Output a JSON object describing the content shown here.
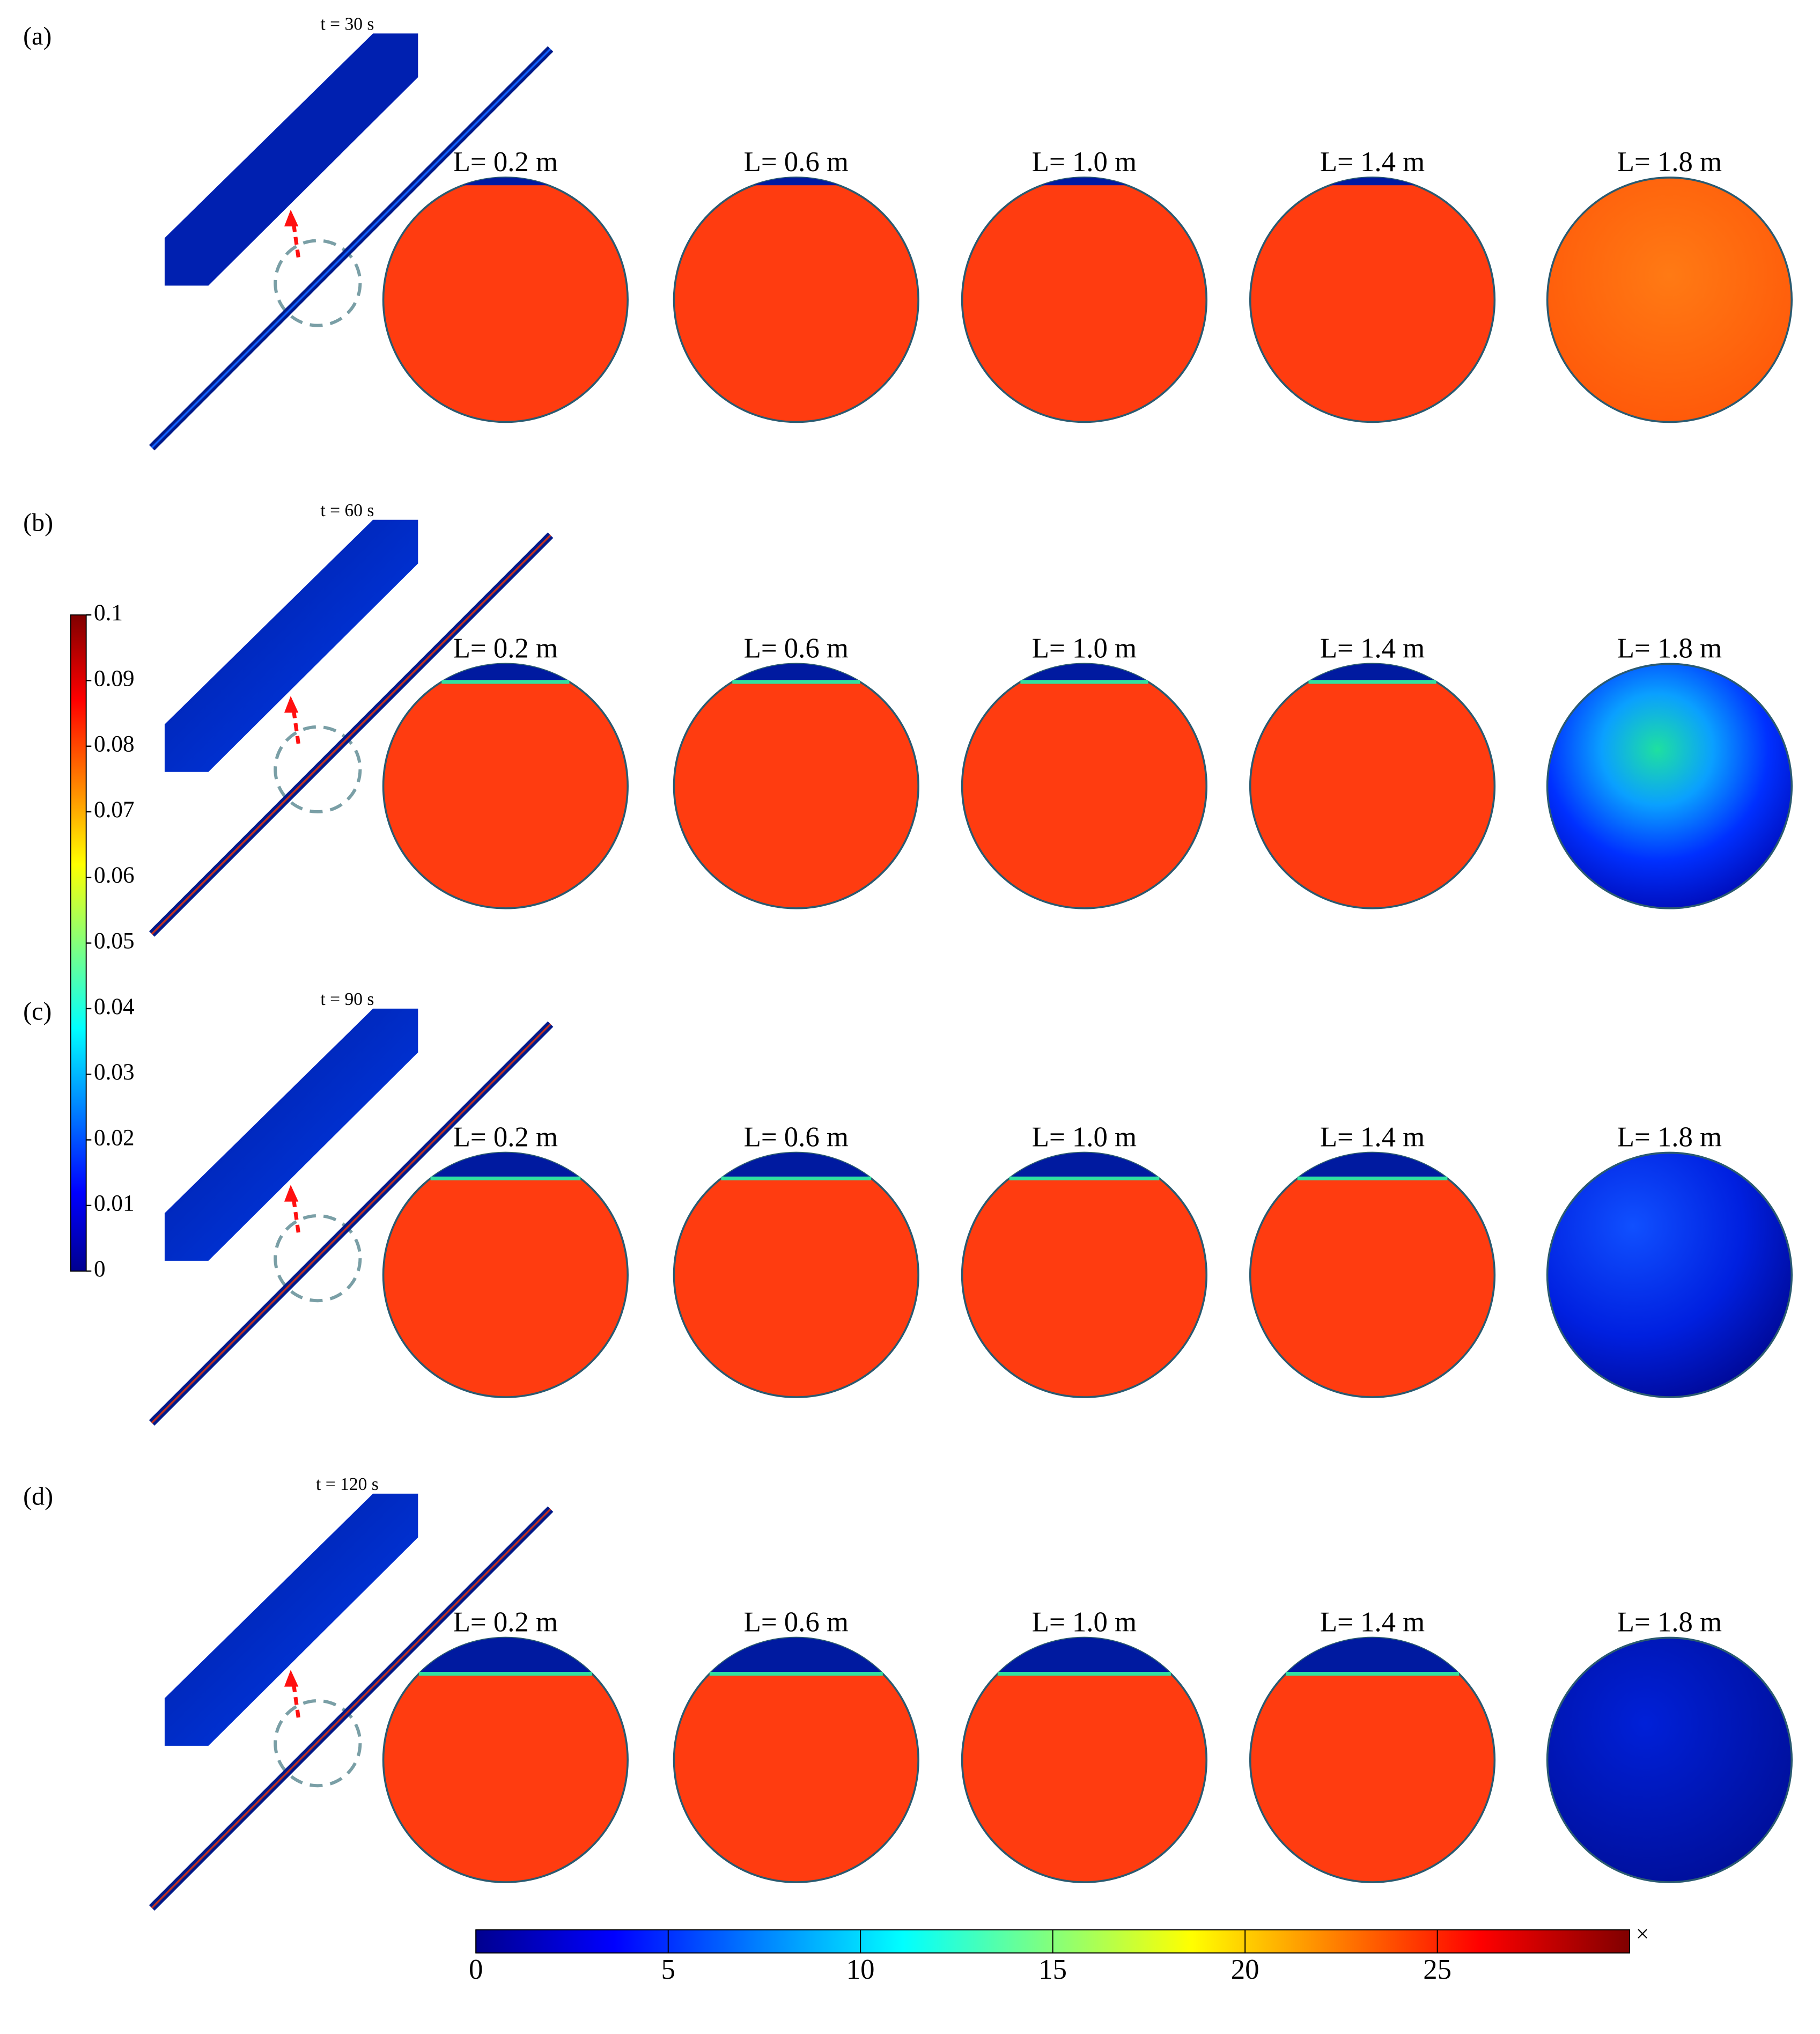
{
  "panels": [
    {
      "label": "(a)",
      "time": "t = 30 s",
      "sections": [
        "L= 0.2 m",
        "L= 0.6 m",
        "L= 1.0 m",
        "L= 1.4 m",
        "L= 1.8 m"
      ]
    },
    {
      "label": "(b)",
      "time": "t = 60 s",
      "sections": [
        "L= 0.2 m",
        "L= 0.6 m",
        "L= 1.0 m",
        "L= 1.4 m",
        "L= 1.8 m"
      ]
    },
    {
      "label": "(c)",
      "time": "t = 90 s",
      "sections": [
        "L= 0.2 m",
        "L= 0.6 m",
        "L= 1.0 m",
        "L= 1.4 m",
        "L= 1.8 m"
      ]
    },
    {
      "label": "(d)",
      "time": "t = 120 s",
      "sections": [
        "L= 0.2 m",
        "L= 0.6 m",
        "L= 1.0 m",
        "L= 1.4 m",
        "L= 1.8 m"
      ]
    }
  ],
  "colorbar_vertical": {
    "lim": [
      0,
      0.1
    ],
    "ticks": [
      0,
      0.01,
      0.02,
      0.03,
      0.04,
      0.05,
      0.06,
      0.07,
      0.08,
      0.09,
      0.1
    ]
  },
  "colorbar_horizontal": {
    "lim": [
      0,
      30
    ],
    "ticks": [
      0,
      5,
      10,
      15,
      20,
      25
    ],
    "multiplier": "×"
  }
}
